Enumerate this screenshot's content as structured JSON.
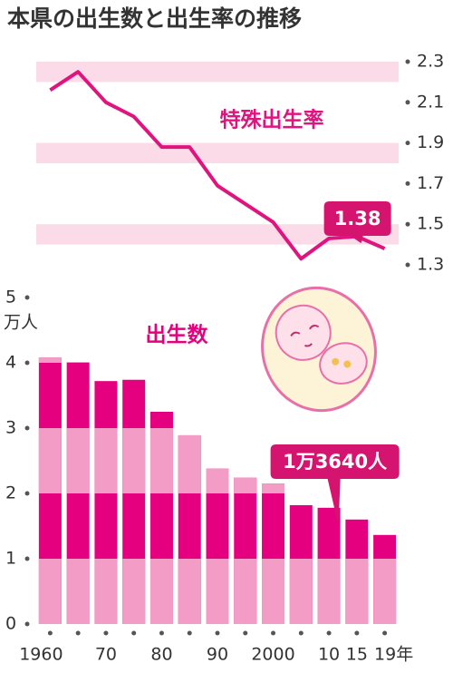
{
  "title": "本県の出生数と出生率の推移",
  "chart_data": [
    {
      "type": "line",
      "series": [
        {
          "name": "特殊出生率",
          "color": "#e0147f",
          "values": [
            2.16,
            2.25,
            2.1,
            2.03,
            1.88,
            1.88,
            1.69,
            1.6,
            1.51,
            1.33,
            1.43,
            1.44,
            1.38
          ],
          "value_labels": [
            null,
            null,
            null,
            null,
            null,
            null,
            null,
            null,
            null,
            null,
            null,
            null,
            "1.38"
          ]
        }
      ],
      "ylim": [
        1.3,
        2.3
      ],
      "yticks": [
        1.3,
        1.5,
        1.7,
        1.9,
        2.1,
        2.3
      ],
      "band_color": "#fcdbe9"
    },
    {
      "type": "bar",
      "categories": [
        "1960",
        null,
        "70",
        null,
        "80",
        null,
        "90",
        null,
        "2000",
        null,
        "10",
        "15",
        "19年"
      ],
      "series": [
        {
          "name": "出生数",
          "color": "#e4007f",
          "stripe_color": "#f29cc6",
          "values": [
            4.08,
            4.01,
            3.72,
            3.74,
            3.25,
            2.89,
            2.38,
            2.24,
            2.15,
            1.82,
            1.78,
            1.6,
            1.364
          ],
          "value_labels": [
            null,
            null,
            null,
            null,
            null,
            null,
            null,
            null,
            null,
            null,
            null,
            null,
            "1万3640人"
          ]
        }
      ],
      "ylim": [
        0,
        5
      ],
      "yticks": [
        0,
        1,
        2,
        3,
        4,
        5
      ],
      "y_unit": "万人"
    }
  ]
}
